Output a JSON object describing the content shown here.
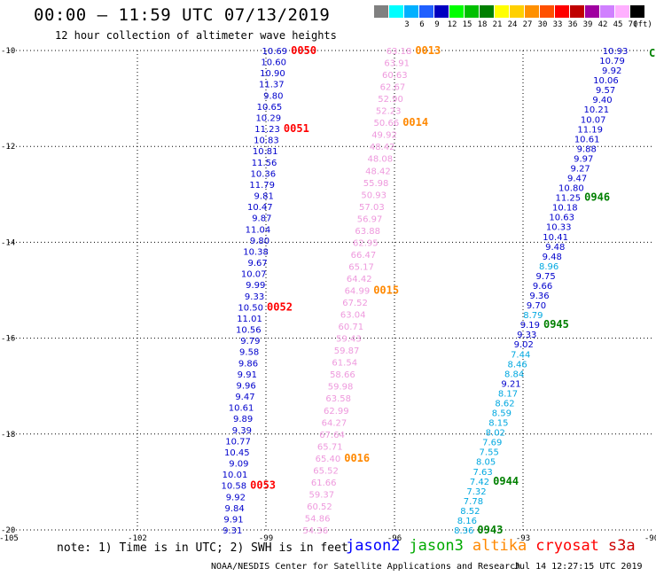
{
  "header": {
    "title": "00:00 – 11:59 UTC 07/13/2019",
    "subtitle": "12 hour collection of altimeter wave heights"
  },
  "color_scale": {
    "unit": "(ft)",
    "bins": [
      {
        "label": "",
        "color": "#808080"
      },
      {
        "label": "3",
        "color": "#00ffff"
      },
      {
        "label": "6",
        "color": "#00b0ff"
      },
      {
        "label": "9",
        "color": "#2060ff"
      },
      {
        "label": "12",
        "color": "#0000c0"
      },
      {
        "label": "15",
        "color": "#00ff00"
      },
      {
        "label": "18",
        "color": "#00c000"
      },
      {
        "label": "21",
        "color": "#008000"
      },
      {
        "label": "24",
        "color": "#ffff00"
      },
      {
        "label": "27",
        "color": "#ffd000"
      },
      {
        "label": "30",
        "color": "#ff9000"
      },
      {
        "label": "33",
        "color": "#ff5000"
      },
      {
        "label": "36",
        "color": "#ff0000"
      },
      {
        "label": "39",
        "color": "#c00000"
      },
      {
        "label": "42",
        "color": "#a000a0"
      },
      {
        "label": "45",
        "color": "#d080ff"
      },
      {
        "label": "70",
        "color": "#ffb0ff"
      },
      {
        "label": "",
        "color": "#000000"
      }
    ]
  },
  "axes": {
    "lon_range": [
      -105,
      -90
    ],
    "lat_range": [
      -20,
      -10
    ],
    "lon_ticks": [
      {
        "v": -105,
        "label": "-105"
      },
      {
        "v": -102,
        "label": "-102"
      },
      {
        "v": -99,
        "label": "-99"
      },
      {
        "v": -96,
        "label": "-96"
      },
      {
        "v": -93,
        "label": "-93"
      },
      {
        "v": -90,
        "label": "-90"
      }
    ],
    "lat_ticks": [
      {
        "v": -10,
        "label": "-10"
      },
      {
        "v": -12,
        "label": "-12"
      },
      {
        "v": -14,
        "label": "-14"
      },
      {
        "v": -16,
        "label": "-16"
      },
      {
        "v": -18,
        "label": "-18"
      },
      {
        "v": -20,
        "label": "-20"
      }
    ],
    "grid": "dotted"
  },
  "tracks": [
    {
      "satellite": "jason2",
      "color": "#0000cc",
      "lon_start": -98.5,
      "lon_end": -99.55,
      "values": [
        "10.69",
        "10.60",
        "10.90",
        "11.37",
        "9.80",
        "10.65",
        "10.29",
        "11.23",
        "10.83",
        "10.81",
        "11.56",
        "10.36",
        "11.79",
        "9.81",
        "10.47",
        "9.87",
        "11.04",
        "9.80",
        "10.38",
        "9.67",
        "10.07",
        "9.99",
        "9.33",
        "10.50",
        "11.01",
        "10.56",
        "9.79",
        "9.58",
        "9.86",
        "9.91",
        "9.96",
        "9.47",
        "10.61",
        "9.89",
        "9.39",
        "10.77",
        "10.45",
        "9.09",
        "10.01",
        "10.58",
        "9.92",
        "9.84",
        "9.91",
        "9.31"
      ],
      "colors": [],
      "time_labels": [
        {
          "text": "0050",
          "after_index": 0,
          "color": "#ff0000"
        },
        {
          "text": "0051",
          "after_index": 7,
          "color": "#ff0000"
        },
        {
          "text": "0052",
          "after_index": 23,
          "color": "#ff0000"
        },
        {
          "text": "0053",
          "after_index": 39,
          "color": "#ff0000"
        }
      ]
    },
    {
      "satellite": "altika",
      "color": "#ee99dd",
      "lon_start": -95.6,
      "lon_end": -97.55,
      "values": [
        "63.18",
        "63.91",
        "60.63",
        "62.67",
        "52.90",
        "52.23",
        "50.66",
        "49.92",
        "48.42",
        "48.08",
        "48.42",
        "55.98",
        "50.93",
        "57.03",
        "56.97",
        "63.88",
        "62.95",
        "66.47",
        "65.17",
        "64.42",
        "64.99",
        "67.52",
        "63.04",
        "60.71",
        "59.43",
        "59.87",
        "61.54",
        "58.66",
        "59.98",
        "63.58",
        "62.99",
        "64.27",
        "67.64",
        "65.71",
        "65.40",
        "65.52",
        "61.66",
        "59.37",
        "60.52",
        "54.86",
        "54.36"
      ],
      "colors": [],
      "time_labels": [
        {
          "text": "0013",
          "after_index": 0,
          "color": "#ff8800"
        },
        {
          "text": "0014",
          "after_index": 6,
          "color": "#ff8800"
        },
        {
          "text": "0015",
          "after_index": 20,
          "color": "#ff8800"
        },
        {
          "text": "0016",
          "after_index": 34,
          "color": "#ff8800"
        }
      ]
    },
    {
      "satellite": "jason2",
      "color": "#0000cc",
      "lon_start": -90.55,
      "lon_end": -94.15,
      "values": [
        "10.93",
        "10.79",
        "9.92",
        "10.06",
        "9.57",
        "9.40",
        "10.21",
        "10.07",
        "11.19",
        "10.61",
        "9.88",
        "9.97",
        "9.27",
        "9.47",
        "10.80",
        "11.25",
        "10.18",
        "10.63",
        "10.33",
        "10.41",
        "9.48",
        "9.48",
        "8.96",
        "9.75",
        "9.66",
        "9.36",
        "9.70",
        "8.79",
        "9.19",
        "9.33",
        "9.02",
        "7.44",
        "8.46",
        "8.84",
        "9.21",
        "8.17",
        "8.62",
        "8.59",
        "8.15",
        "8.02",
        "7.69",
        "7.55",
        "8.05",
        "7.63",
        "7.42",
        "7.32",
        "7.78",
        "8.52",
        "8.16",
        "8.36"
      ],
      "colors": [
        "#0000cc",
        "#0000cc",
        "#0000cc",
        "#0000cc",
        "#0000cc",
        "#0000cc",
        "#0000cc",
        "#0000cc",
        "#0000cc",
        "#0000cc",
        "#0000cc",
        "#0000cc",
        "#0000cc",
        "#0000cc",
        "#0000cc",
        "#0000cc",
        "#0000cc",
        "#0000cc",
        "#0000cc",
        "#0000cc",
        "#0000cc",
        "#0000cc",
        "#00a8e0",
        "#0000cc",
        "#0000cc",
        "#0000cc",
        "#0000cc",
        "#00a8e0",
        "#0000cc",
        "#0000cc",
        "#0000cc",
        "#00a8e0",
        "#00a8e0",
        "#00a8e0",
        "#0000cc",
        "#00a8e0",
        "#00a8e0",
        "#00a8e0",
        "#00a8e0",
        "#00a8e0",
        "#00a8e0",
        "#00a8e0",
        "#00a8e0",
        "#00a8e0",
        "#00a8e0",
        "#00a8e0",
        "#00a8e0",
        "#00a8e0",
        "#00a8e0",
        "#00a8e0"
      ],
      "time_labels": [
        {
          "text": "0946",
          "after_index": 15,
          "color": "#008000"
        },
        {
          "text": "0945",
          "after_index": 28,
          "color": "#008000"
        },
        {
          "text": "0944",
          "after_index": 44,
          "color": "#008000"
        },
        {
          "text": "0943",
          "after_index": 49,
          "color": "#008000"
        }
      ]
    }
  ],
  "edge_label": {
    "text": "C",
    "color": "#008000"
  },
  "footer": {
    "note": "note: 1) Time is in UTC; 2) SWH is in feet",
    "legend": [
      {
        "name": "jason2",
        "color": "#0000ff"
      },
      {
        "name": "jason3",
        "color": "#00aa00"
      },
      {
        "name": "altika",
        "color": "#ff8800"
      },
      {
        "name": "cryosat",
        "color": "#ff0000"
      },
      {
        "name": "s3a",
        "color": "#cc0000"
      }
    ],
    "credit": "NOAA/NESDIS Center for Satellite Applications and Research",
    "timestamp": "Jul 14 12:27:15 UTC 2019"
  }
}
